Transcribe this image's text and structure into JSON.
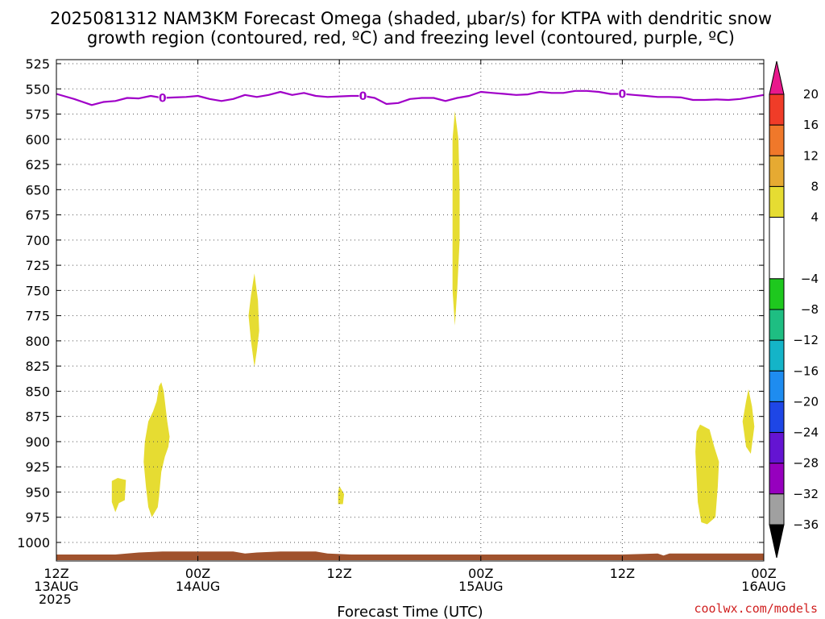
{
  "chart_data": {
    "type": "time-height cross section",
    "title_line1": "2025081312 NAM3KM Forecast Omega (shaded, μbar/s) for KTPA with dendritic snow",
    "title_line2": "growth region (contoured, red, ºC) and freezing level (contoured, purple, ºC)",
    "xlabel": "Forecast Time (UTC)",
    "credit": "coolwx.com/models",
    "x_range_hours": [
      0,
      60
    ],
    "y_range_hpa": [
      515,
      1020
    ],
    "grid": true,
    "x_ticks": [
      {
        "hour": 0,
        "line1": "12Z",
        "line2": "13AUG",
        "line3": "2025"
      },
      {
        "hour": 12,
        "line1": "00Z",
        "line2": "14AUG",
        "line3": ""
      },
      {
        "hour": 24,
        "line1": "12Z",
        "line2": "",
        "line3": ""
      },
      {
        "hour": 36,
        "line1": "00Z",
        "line2": "15AUG",
        "line3": ""
      },
      {
        "hour": 48,
        "line1": "12Z",
        "line2": "",
        "line3": ""
      },
      {
        "hour": 60,
        "line1": "00Z",
        "line2": "16AUG",
        "line3": ""
      }
    ],
    "y_ticks": [
      525,
      550,
      575,
      600,
      625,
      650,
      675,
      700,
      725,
      750,
      775,
      800,
      825,
      850,
      875,
      900,
      925,
      950,
      975,
      1000
    ],
    "freezing_level": {
      "label": "0",
      "color": "#a000c8",
      "label_hours": [
        9,
        26,
        48
      ],
      "points": [
        [
          0,
          555
        ],
        [
          1.5,
          560
        ],
        [
          3,
          566
        ],
        [
          4,
          563
        ],
        [
          5,
          562
        ],
        [
          6,
          559
        ],
        [
          7,
          559.5
        ],
        [
          8,
          557
        ],
        [
          9,
          559
        ],
        [
          10,
          558.5
        ],
        [
          11,
          558
        ],
        [
          12,
          557
        ],
        [
          13,
          560
        ],
        [
          14,
          562
        ],
        [
          15,
          560
        ],
        [
          16,
          556
        ],
        [
          17,
          558
        ],
        [
          18,
          556
        ],
        [
          19,
          553
        ],
        [
          20,
          556
        ],
        [
          21,
          554
        ],
        [
          22,
          557
        ],
        [
          23,
          558
        ],
        [
          24,
          557.5
        ],
        [
          25,
          557
        ],
        [
          26,
          557
        ],
        [
          27,
          559
        ],
        [
          28,
          565
        ],
        [
          29,
          564
        ],
        [
          30,
          560
        ],
        [
          31,
          559
        ],
        [
          32,
          559
        ],
        [
          33,
          562
        ],
        [
          34,
          559
        ],
        [
          35,
          557
        ],
        [
          36,
          553
        ],
        [
          37,
          554
        ],
        [
          38,
          555
        ],
        [
          39,
          556
        ],
        [
          40,
          555.5
        ],
        [
          41,
          553
        ],
        [
          42,
          554
        ],
        [
          43,
          554
        ],
        [
          44,
          552
        ],
        [
          45,
          552
        ],
        [
          46,
          553
        ],
        [
          47,
          555
        ],
        [
          48,
          555
        ],
        [
          49,
          556
        ],
        [
          50,
          557
        ],
        [
          51,
          558
        ],
        [
          52,
          558
        ],
        [
          53,
          558.5
        ],
        [
          54,
          561
        ],
        [
          55,
          561
        ],
        [
          56,
          560.5
        ],
        [
          57,
          561
        ],
        [
          58,
          560
        ],
        [
          59,
          558
        ],
        [
          60,
          556
        ]
      ]
    },
    "omega_regions": [
      {
        "range": "4 to 8",
        "color": "#e6dc32",
        "points": [
          [
            4.7,
            939
          ],
          [
            5.2,
            936
          ],
          [
            5.9,
            938
          ],
          [
            5.8,
            958
          ],
          [
            5.3,
            961
          ],
          [
            5.0,
            970
          ],
          [
            4.7,
            960
          ]
        ]
      },
      {
        "range": "4 to 8",
        "color": "#e6dc32",
        "points": [
          [
            8.9,
            841
          ],
          [
            9.1,
            850
          ],
          [
            9.4,
            880
          ],
          [
            9.6,
            895
          ],
          [
            9.5,
            905
          ],
          [
            9.2,
            915
          ],
          [
            8.9,
            930
          ],
          [
            8.7,
            955
          ],
          [
            8.6,
            965
          ],
          [
            8.1,
            975
          ],
          [
            7.8,
            965
          ],
          [
            7.6,
            945
          ],
          [
            7.4,
            920
          ],
          [
            7.5,
            900
          ],
          [
            7.8,
            880
          ],
          [
            8.2,
            870
          ],
          [
            8.5,
            860
          ],
          [
            8.7,
            845
          ]
        ]
      },
      {
        "range": "4 to 8",
        "color": "#e6dc32",
        "points": [
          [
            16.8,
            733
          ],
          [
            17.1,
            760
          ],
          [
            17.2,
            790
          ],
          [
            17.0,
            810
          ],
          [
            16.8,
            826
          ],
          [
            16.5,
            800
          ],
          [
            16.3,
            775
          ],
          [
            16.5,
            755
          ]
        ]
      },
      {
        "range": "4 to 8",
        "color": "#e6dc32",
        "points": [
          [
            24.0,
            944
          ],
          [
            24.4,
            952
          ],
          [
            24.3,
            962
          ],
          [
            23.9,
            962
          ],
          [
            23.9,
            950
          ]
        ]
      },
      {
        "range": "4 to 8",
        "color": "#e6dc32",
        "points": [
          [
            33.8,
            572
          ],
          [
            34.1,
            600
          ],
          [
            34.2,
            650
          ],
          [
            34.2,
            700
          ],
          [
            34.0,
            750
          ],
          [
            33.8,
            785
          ],
          [
            33.6,
            750
          ],
          [
            33.6,
            700
          ],
          [
            33.6,
            650
          ],
          [
            33.6,
            600
          ]
        ]
      },
      {
        "range": "4 to 8",
        "color": "#e6dc32",
        "points": [
          [
            54.6,
            883
          ],
          [
            55.4,
            888
          ],
          [
            55.8,
            905
          ],
          [
            56.2,
            920
          ],
          [
            56.1,
            945
          ],
          [
            55.9,
            975
          ],
          [
            55.2,
            982
          ],
          [
            54.7,
            980
          ],
          [
            54.4,
            960
          ],
          [
            54.3,
            935
          ],
          [
            54.2,
            910
          ],
          [
            54.3,
            890
          ]
        ]
      },
      {
        "range": "4 to 8",
        "color": "#e6dc32",
        "points": [
          [
            58.7,
            848
          ],
          [
            59.0,
            865
          ],
          [
            59.2,
            885
          ],
          [
            58.9,
            912
          ],
          [
            58.5,
            905
          ],
          [
            58.2,
            880
          ],
          [
            58.5,
            860
          ]
        ]
      }
    ],
    "terrain": {
      "color": "#a0522d",
      "points": [
        [
          0,
          1012
        ],
        [
          5,
          1012
        ],
        [
          6,
          1011
        ],
        [
          7,
          1010
        ],
        [
          9,
          1009
        ],
        [
          12,
          1009
        ],
        [
          15,
          1009
        ],
        [
          16,
          1011
        ],
        [
          17,
          1010
        ],
        [
          19,
          1009
        ],
        [
          22,
          1009
        ],
        [
          23,
          1011
        ],
        [
          25,
          1012
        ],
        [
          30,
          1012
        ],
        [
          36,
          1012
        ],
        [
          44,
          1012
        ],
        [
          45.5,
          1012
        ],
        [
          48,
          1012
        ],
        [
          51,
          1011
        ],
        [
          51.5,
          1013
        ],
        [
          52,
          1011
        ],
        [
          56,
          1011
        ],
        [
          60,
          1011
        ]
      ]
    },
    "colorbar": {
      "top_label": "20",
      "labels": [
        "20",
        "16",
        "12",
        "8",
        "4",
        "−4",
        "−8",
        "−12",
        "−16",
        "−20",
        "−24",
        "−28",
        "−32",
        "−36"
      ],
      "top_arrow_color": "#e8188c",
      "bottom_arrow_color": "#000000",
      "bins": [
        {
          "from": 16,
          "to": 20,
          "color": "#f03c28"
        },
        {
          "from": 12,
          "to": 16,
          "color": "#f0782a"
        },
        {
          "from": 8,
          "to": 12,
          "color": "#e6aa32"
        },
        {
          "from": 4,
          "to": 8,
          "color": "#e6dc32"
        },
        {
          "from": -4,
          "to": 4,
          "color": "#ffffff"
        },
        {
          "from": -8,
          "to": -4,
          "color": "#1ec81e"
        },
        {
          "from": -12,
          "to": -8,
          "color": "#1ebe82"
        },
        {
          "from": -16,
          "to": -12,
          "color": "#14b4c8"
        },
        {
          "from": -20,
          "to": -16,
          "color": "#1e8cf0"
        },
        {
          "from": -24,
          "to": -20,
          "color": "#1e46e6"
        },
        {
          "from": -28,
          "to": -24,
          "color": "#6414d2"
        },
        {
          "from": -32,
          "to": -28,
          "color": "#9600be"
        },
        {
          "from": -36,
          "to": -32,
          "color": "#a0a0a0"
        }
      ]
    }
  }
}
